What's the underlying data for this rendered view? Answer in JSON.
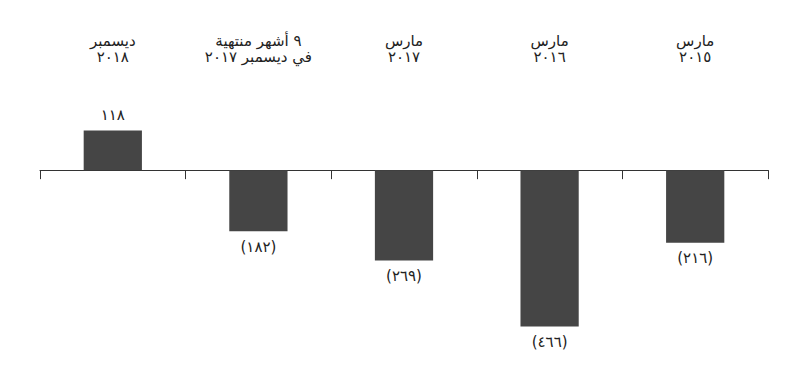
{
  "chart_data": {
    "type": "bar",
    "categories": [
      "مارس\n٢٠١٥",
      "مارس\n٢٠١٦",
      "مارس\n٢٠١٧",
      "٩ أشهر منتهية\nفي ديسمبر ٢٠١٧",
      "ديسمبر\n٢٠١٨"
    ],
    "values": [
      -216,
      -466,
      -269,
      -182,
      118
    ],
    "value_labels": [
      "(٢١٦)",
      "(٤٦٦)",
      "(٢٦٩)",
      "(١٨٢)",
      "١١٨"
    ],
    "color": "#454545",
    "ylim": [
      -500,
      200
    ],
    "grid": false,
    "data_labels": true,
    "tick_labels": "x"
  }
}
